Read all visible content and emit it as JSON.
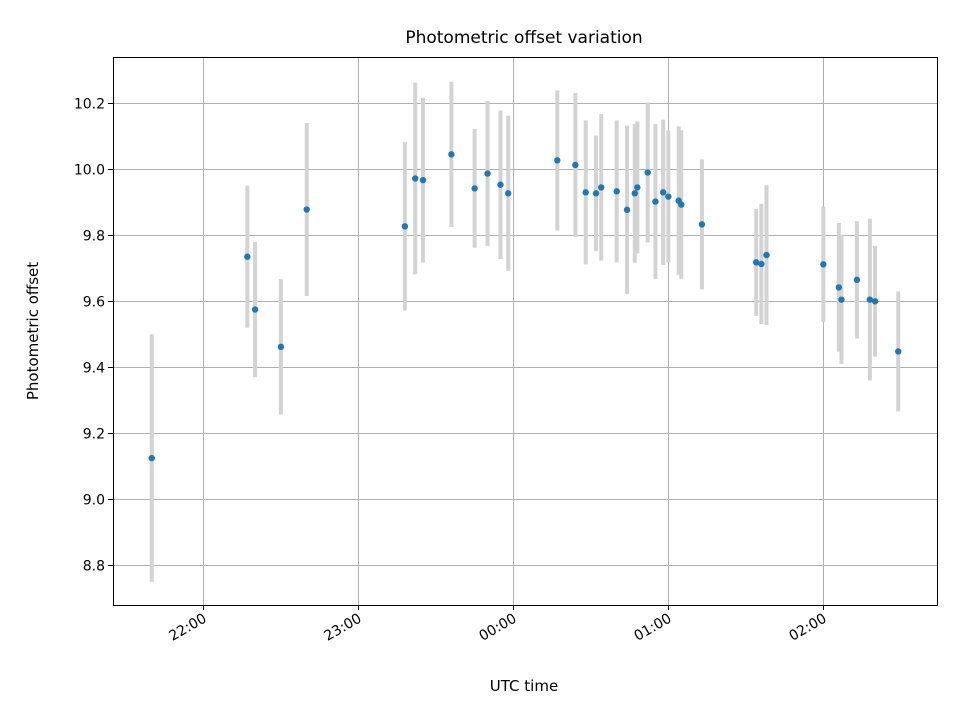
{
  "chart_data": {
    "type": "scatter",
    "title": "Photometric offset variation",
    "xlabel": "UTC time",
    "ylabel": "Photometric offset",
    "x_axis_kind": "time",
    "x_ticks": [
      "22:00",
      "23:00",
      "00:00",
      "01:00",
      "02:00"
    ],
    "y_ticks": [
      "8.8",
      "9.0",
      "9.2",
      "9.4",
      "9.6",
      "9.8",
      "10.0",
      "10.2"
    ],
    "xlim": [
      "21:25",
      "02:44"
    ],
    "ylim": [
      8.68,
      10.34
    ],
    "grid": true,
    "error_bar_color": "#d3d3d3",
    "point_color": "#1f77b4",
    "series": [
      {
        "points": [
          {
            "x": "21:40",
            "y": 9.125,
            "err": 0.375
          },
          {
            "x": "22:17",
            "y": 9.735,
            "err": 0.215
          },
          {
            "x": "22:20",
            "y": 9.575,
            "err": 0.205
          },
          {
            "x": "22:30",
            "y": 9.462,
            "err": 0.205
          },
          {
            "x": "22:40",
            "y": 9.878,
            "err": 0.262
          },
          {
            "x": "23:18",
            "y": 9.827,
            "err": 0.255
          },
          {
            "x": "23:22",
            "y": 9.972,
            "err": 0.29
          },
          {
            "x": "23:25",
            "y": 9.967,
            "err": 0.25
          },
          {
            "x": "23:36",
            "y": 10.045,
            "err": 0.22
          },
          {
            "x": "23:45",
            "y": 9.942,
            "err": 0.18
          },
          {
            "x": "23:50",
            "y": 9.987,
            "err": 0.22
          },
          {
            "x": "23:55",
            "y": 9.953,
            "err": 0.225
          },
          {
            "x": "23:58",
            "y": 9.927,
            "err": 0.235
          },
          {
            "x": "00:17",
            "y": 10.027,
            "err": 0.212
          },
          {
            "x": "00:24",
            "y": 10.013,
            "err": 0.218
          },
          {
            "x": "00:28",
            "y": 9.93,
            "err": 0.218
          },
          {
            "x": "00:32",
            "y": 9.927,
            "err": 0.175
          },
          {
            "x": "00:34",
            "y": 9.945,
            "err": 0.222
          },
          {
            "x": "00:40",
            "y": 9.933,
            "err": 0.215
          },
          {
            "x": "00:44",
            "y": 9.877,
            "err": 0.255
          },
          {
            "x": "00:47",
            "y": 9.927,
            "err": 0.21
          },
          {
            "x": "00:48",
            "y": 9.945,
            "err": 0.2
          },
          {
            "x": "00:52",
            "y": 9.99,
            "err": 0.212
          },
          {
            "x": "00:55",
            "y": 9.902,
            "err": 0.235
          },
          {
            "x": "00:58",
            "y": 9.93,
            "err": 0.22
          },
          {
            "x": "01:00",
            "y": 9.917,
            "err": 0.2
          },
          {
            "x": "01:04",
            "y": 9.905,
            "err": 0.225
          },
          {
            "x": "01:05",
            "y": 9.893,
            "err": 0.225
          },
          {
            "x": "01:13",
            "y": 9.833,
            "err": 0.197
          },
          {
            "x": "01:34",
            "y": 9.718,
            "err": 0.162
          },
          {
            "x": "01:36",
            "y": 9.713,
            "err": 0.182
          },
          {
            "x": "01:38",
            "y": 9.74,
            "err": 0.212
          },
          {
            "x": "02:00",
            "y": 9.712,
            "err": 0.175
          },
          {
            "x": "02:06",
            "y": 9.642,
            "err": 0.195
          },
          {
            "x": "02:07",
            "y": 9.605,
            "err": 0.195
          },
          {
            "x": "02:13",
            "y": 9.665,
            "err": 0.178
          },
          {
            "x": "02:18",
            "y": 9.605,
            "err": 0.245
          },
          {
            "x": "02:20",
            "y": 9.6,
            "err": 0.168
          },
          {
            "x": "02:29",
            "y": 9.448,
            "err": 0.182
          }
        ]
      }
    ]
  }
}
